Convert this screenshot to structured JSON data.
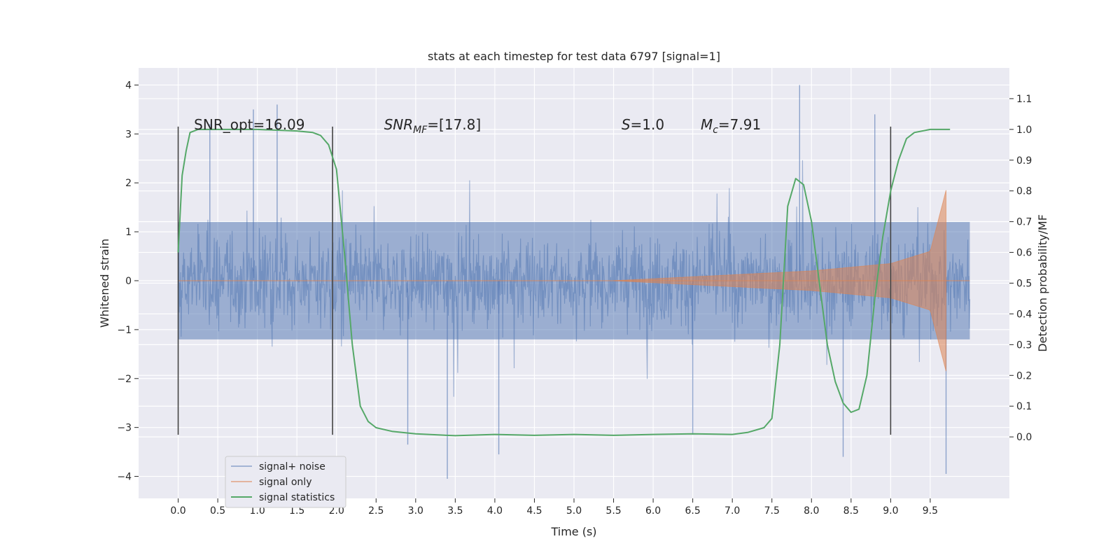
{
  "chart_data": {
    "type": "line",
    "title": "stats at each timestep for test data 6797 [signal=1]",
    "xlabel": "Time (s)",
    "ylabel_left": "Whitened strain",
    "ylabel_right": "Detection probability/MF",
    "xlim": [
      -0.5,
      10.5
    ],
    "ylim_left": [
      -4.45,
      4.35
    ],
    "ylim_right": [
      -0.2,
      1.2
    ],
    "x_ticks": [
      0.0,
      0.5,
      1.0,
      1.5,
      2.0,
      2.5,
      3.0,
      3.5,
      4.0,
      4.5,
      5.0,
      5.5,
      6.0,
      6.5,
      7.0,
      7.5,
      8.0,
      8.5,
      9.0,
      9.5
    ],
    "x_tick_labels": [
      "0.0",
      "0.5",
      "1.0",
      "1.5",
      "2.0",
      "2.5",
      "3.0",
      "3.5",
      "4.0",
      "4.5",
      "5.0",
      "5.5",
      "6.0",
      "6.5",
      "7.0",
      "7.5",
      "8.0",
      "8.5",
      "9.0",
      "9.5"
    ],
    "y_ticks_left": [
      4,
      3,
      2,
      1,
      0,
      -1,
      -2,
      -3,
      -4
    ],
    "y_tick_labels_left": [
      "4",
      "3",
      "2",
      "1",
      "0",
      "−1",
      "−2",
      "−3",
      "−4"
    ],
    "y_ticks_right": [
      1.1,
      1.0,
      0.9,
      0.8,
      0.7,
      0.6,
      0.5,
      0.4,
      0.3,
      0.2,
      0.1,
      0.0
    ],
    "y_tick_labels_right": [
      "1.1",
      "1.0",
      "0.9",
      "0.8",
      "0.7",
      "0.6",
      "0.5",
      "0.4",
      "0.3",
      "0.2",
      "0.1",
      "0.0"
    ],
    "grid": true,
    "legend_position": "lower-left",
    "annotations": {
      "snr_opt": "SNR_opt=16.09",
      "snr_mf_sym": "SNR",
      "snr_mf_sub": "MF",
      "snr_mf_val": "=[17.8]",
      "s_sym": "S",
      "s_val": "=1.0",
      "mc_sym": "M",
      "mc_sub": "c",
      "mc_val": "=7.91"
    },
    "vertical_lines_x": [
      0.0,
      1.95,
      9.0
    ],
    "vertical_lines_yrange": [
      -3.15,
      3.15
    ],
    "series": [
      {
        "name": "signal+ noise",
        "axis": "left",
        "color": "#4c72b0",
        "x_range": [
          0.0,
          10.0
        ],
        "typical_envelope": [
          -1.5,
          1.6
        ],
        "peak_maxima": [
          [
            0.95,
            3.5
          ],
          [
            1.25,
            3.6
          ],
          [
            7.85,
            4.0
          ],
          [
            8.8,
            3.4
          ],
          [
            0.4,
            3.2
          ]
        ],
        "peak_minima": [
          [
            3.4,
            -4.05
          ],
          [
            9.7,
            -3.95
          ],
          [
            8.4,
            -3.6
          ],
          [
            4.05,
            -3.55
          ],
          [
            2.9,
            -3.35
          ],
          [
            6.5,
            -3.15
          ]
        ]
      },
      {
        "name": "signal only",
        "axis": "left",
        "color": "#dd8452",
        "chirp_start": 5.5,
        "chirp_end": 9.7,
        "amplitude_at_end": 1.85,
        "description_points": [
          [
            5.5,
            0.0
          ],
          [
            7.0,
            0.12
          ],
          [
            8.0,
            0.2
          ],
          [
            9.0,
            0.35
          ],
          [
            9.5,
            0.6
          ],
          [
            9.7,
            1.85
          ]
        ]
      },
      {
        "name": "signal statistics",
        "axis": "right",
        "color": "#55a868",
        "x": [
          0.0,
          0.05,
          0.1,
          0.15,
          0.25,
          0.5,
          1.0,
          1.5,
          1.7,
          1.8,
          1.9,
          2.0,
          2.1,
          2.2,
          2.3,
          2.4,
          2.5,
          2.7,
          3.0,
          3.5,
          4.0,
          4.5,
          5.0,
          5.5,
          6.0,
          6.5,
          7.0,
          7.2,
          7.4,
          7.5,
          7.6,
          7.7,
          7.8,
          7.9,
          8.0,
          8.1,
          8.2,
          8.3,
          8.4,
          8.5,
          8.6,
          8.7,
          8.8,
          8.9,
          9.0,
          9.1,
          9.2,
          9.3,
          9.5,
          9.75
        ],
        "y": [
          0.6,
          0.85,
          0.93,
          0.99,
          1.0,
          1.0,
          1.0,
          0.995,
          0.99,
          0.98,
          0.95,
          0.87,
          0.6,
          0.3,
          0.1,
          0.05,
          0.03,
          0.018,
          0.01,
          0.004,
          0.008,
          0.005,
          0.008,
          0.005,
          0.008,
          0.01,
          0.008,
          0.015,
          0.03,
          0.06,
          0.3,
          0.75,
          0.84,
          0.82,
          0.7,
          0.5,
          0.3,
          0.18,
          0.11,
          0.08,
          0.09,
          0.2,
          0.45,
          0.65,
          0.8,
          0.9,
          0.97,
          0.99,
          1.0,
          1.0
        ]
      }
    ]
  }
}
